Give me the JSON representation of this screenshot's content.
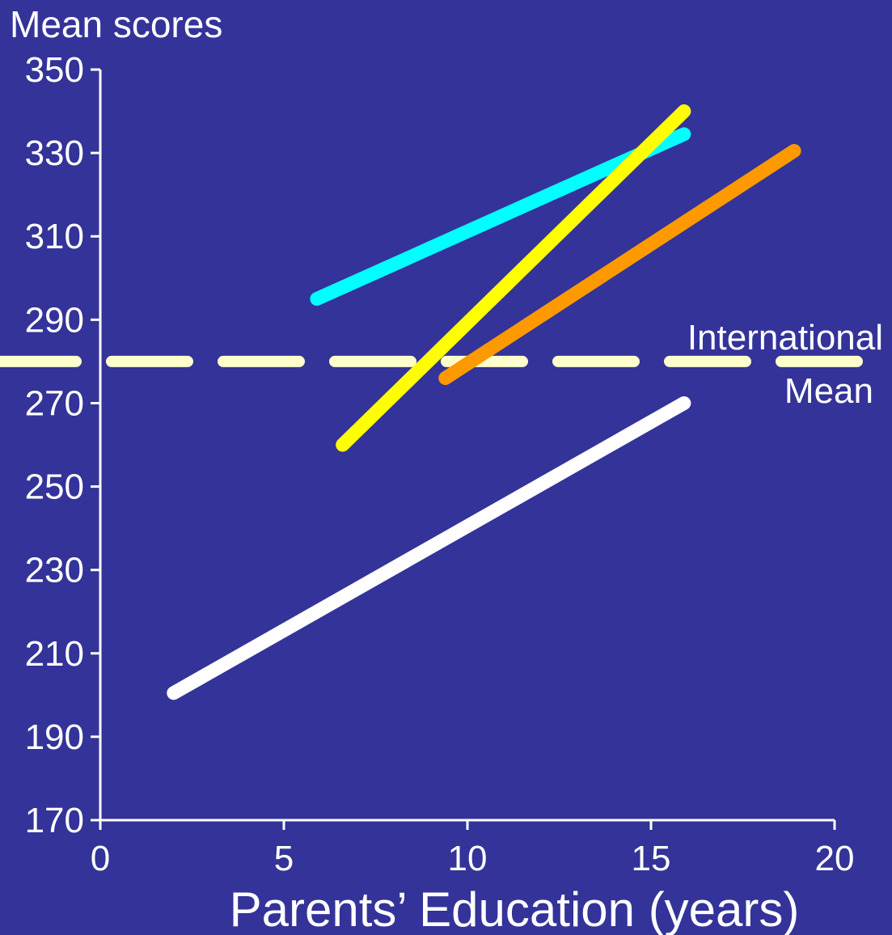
{
  "colors": {
    "background": "#333399",
    "axis": "#ffffff",
    "reference_line": "#ffffcc"
  },
  "chart_data": {
    "type": "line",
    "title": "Mean scores",
    "xlabel": "Parents’ Education (years)",
    "ylabel": "",
    "xlim": [
      0,
      20
    ],
    "ylim": [
      170,
      350
    ],
    "x_ticks": [
      "0",
      "5",
      "10",
      "15",
      "20"
    ],
    "y_ticks": [
      "170",
      "190",
      "210",
      "230",
      "250",
      "270",
      "290",
      "310",
      "330",
      "350"
    ],
    "grid": false,
    "series": [
      {
        "color": "#ffffff",
        "x": [
          2.0,
          15.9
        ],
        "y": [
          200.5,
          270
        ]
      },
      {
        "color": "#00ffff",
        "x": [
          5.9,
          15.9
        ],
        "y": [
          295,
          334.5
        ]
      },
      {
        "color": "#ffff00",
        "x": [
          6.6,
          15.9
        ],
        "y": [
          260,
          340
        ]
      },
      {
        "color": "#ff9900",
        "x": [
          9.4,
          18.9
        ],
        "y": [
          276,
          330.5
        ]
      }
    ],
    "reference_lines": [
      {
        "y": 280,
        "label_line1": "International",
        "label_line2": "Mean",
        "style": "dashed"
      }
    ]
  }
}
